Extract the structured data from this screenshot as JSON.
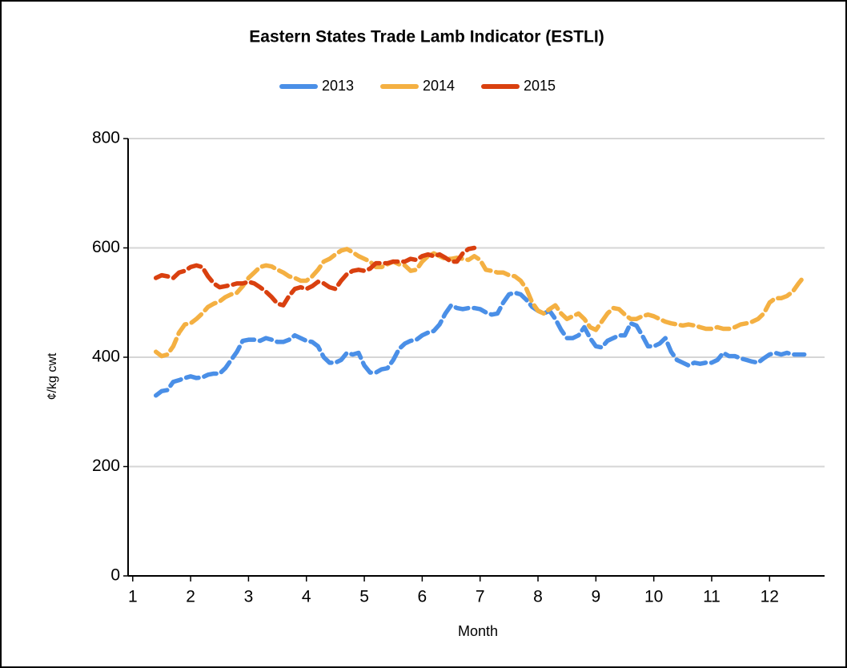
{
  "chart_data": {
    "type": "line",
    "title": "Eastern States Trade Lamb Indicator (ESTLI)",
    "x_label": "Month",
    "y_label": "¢/kg cwt",
    "x": [
      1.4,
      1.5,
      1.6,
      1.7,
      1.8,
      1.9,
      2.0,
      2.1,
      2.2,
      2.3,
      2.4,
      2.5,
      2.6,
      2.7,
      2.8,
      2.9,
      3.0,
      3.1,
      3.2,
      3.3,
      3.4,
      3.5,
      3.6,
      3.7,
      3.8,
      3.9,
      4.0,
      4.1,
      4.2,
      4.3,
      4.4,
      4.5,
      4.6,
      4.7,
      4.8,
      4.9,
      5.0,
      5.1,
      5.2,
      5.3,
      5.4,
      5.5,
      5.6,
      5.7,
      5.8,
      5.9,
      6.0,
      6.1,
      6.2,
      6.3,
      6.4,
      6.5,
      6.6,
      6.7,
      6.8,
      6.9,
      7.0,
      7.1,
      7.2,
      7.3,
      7.4,
      7.5,
      7.6,
      7.7,
      7.8,
      7.9,
      8.0,
      8.1,
      8.2,
      8.3,
      8.4,
      8.5,
      8.6,
      8.7,
      8.8,
      8.9,
      9.0,
      9.1,
      9.2,
      9.3,
      9.4,
      9.5,
      9.6,
      9.7,
      9.8,
      9.9,
      10.0,
      10.1,
      10.2,
      10.3,
      10.4,
      10.5,
      10.6,
      10.7,
      10.8,
      10.9,
      11.0,
      11.1,
      11.2,
      11.3,
      11.4,
      11.5,
      11.6,
      11.7,
      11.8,
      11.9,
      12.0,
      12.1,
      12.2,
      12.3,
      12.4,
      12.5,
      12.6
    ],
    "series": [
      {
        "name": "2013",
        "color": "#4a8fe7",
        "values": [
          330,
          338,
          340,
          355,
          358,
          362,
          365,
          362,
          363,
          368,
          370,
          370,
          380,
          395,
          410,
          430,
          432,
          432,
          430,
          435,
          432,
          428,
          428,
          432,
          440,
          435,
          430,
          428,
          420,
          400,
          390,
          390,
          395,
          408,
          405,
          408,
          385,
          372,
          372,
          378,
          380,
          395,
          415,
          425,
          430,
          432,
          440,
          445,
          448,
          460,
          480,
          495,
          490,
          488,
          490,
          490,
          488,
          482,
          478,
          480,
          500,
          515,
          518,
          515,
          505,
          492,
          485,
          480,
          485,
          470,
          450,
          435,
          435,
          440,
          455,
          435,
          420,
          418,
          430,
          435,
          440,
          440,
          462,
          458,
          440,
          420,
          420,
          425,
          435,
          410,
          395,
          390,
          385,
          390,
          388,
          390,
          390,
          395,
          408,
          402,
          402,
          398,
          395,
          392,
          390,
          398,
          405,
          408,
          405,
          408,
          405,
          405,
          405
        ]
      },
      {
        "name": "2014",
        "color": "#f4b042",
        "values": [
          410,
          402,
          405,
          420,
          445,
          460,
          462,
          470,
          480,
          492,
          498,
          502,
          510,
          515,
          518,
          530,
          545,
          555,
          565,
          568,
          566,
          560,
          555,
          548,
          545,
          540,
          540,
          548,
          560,
          575,
          580,
          588,
          595,
          598,
          592,
          585,
          580,
          575,
          565,
          565,
          570,
          575,
          570,
          568,
          558,
          560,
          575,
          585,
          590,
          585,
          580,
          580,
          582,
          580,
          578,
          585,
          578,
          560,
          558,
          555,
          555,
          550,
          548,
          540,
          525,
          500,
          485,
          480,
          488,
          495,
          480,
          470,
          475,
          480,
          470,
          455,
          450,
          465,
          480,
          490,
          488,
          478,
          470,
          470,
          475,
          478,
          475,
          470,
          465,
          462,
          460,
          458,
          460,
          458,
          455,
          452,
          452,
          455,
          452,
          452,
          455,
          460,
          462,
          465,
          470,
          480,
          500,
          508,
          508,
          512,
          520,
          535,
          548
        ]
      },
      {
        "name": "2015",
        "color": "#d9400f",
        "values": [
          545,
          550,
          548,
          545,
          555,
          558,
          565,
          568,
          565,
          548,
          535,
          528,
          530,
          532,
          535,
          535,
          538,
          535,
          528,
          520,
          510,
          498,
          495,
          512,
          525,
          528,
          525,
          530,
          538,
          535,
          528,
          525,
          540,
          552,
          558,
          560,
          558,
          562,
          572,
          572,
          572,
          575,
          575,
          575,
          580,
          578,
          585,
          588,
          585,
          588,
          582,
          575,
          575,
          590,
          598,
          600,
          null,
          null,
          null,
          null,
          null,
          null,
          null,
          null,
          null,
          null,
          null,
          null,
          null,
          null,
          null,
          null,
          null,
          null,
          null,
          null,
          null,
          null,
          null,
          null,
          null,
          null,
          null,
          null,
          null,
          null,
          null,
          null,
          null,
          null,
          null,
          null,
          null,
          null,
          null,
          null,
          null,
          null,
          null,
          null,
          null,
          null,
          null,
          null,
          null,
          null,
          null,
          null,
          null,
          null,
          null,
          null,
          null
        ]
      }
    ],
    "xlim": [
      0.92,
      12.95
    ],
    "xticks": [
      1,
      2,
      3,
      4,
      5,
      6,
      7,
      8,
      9,
      10,
      11,
      12
    ],
    "ylim": [
      0,
      800
    ],
    "yticks": [
      0,
      200,
      400,
      600,
      800
    ],
    "grid": true,
    "legend": "top"
  }
}
